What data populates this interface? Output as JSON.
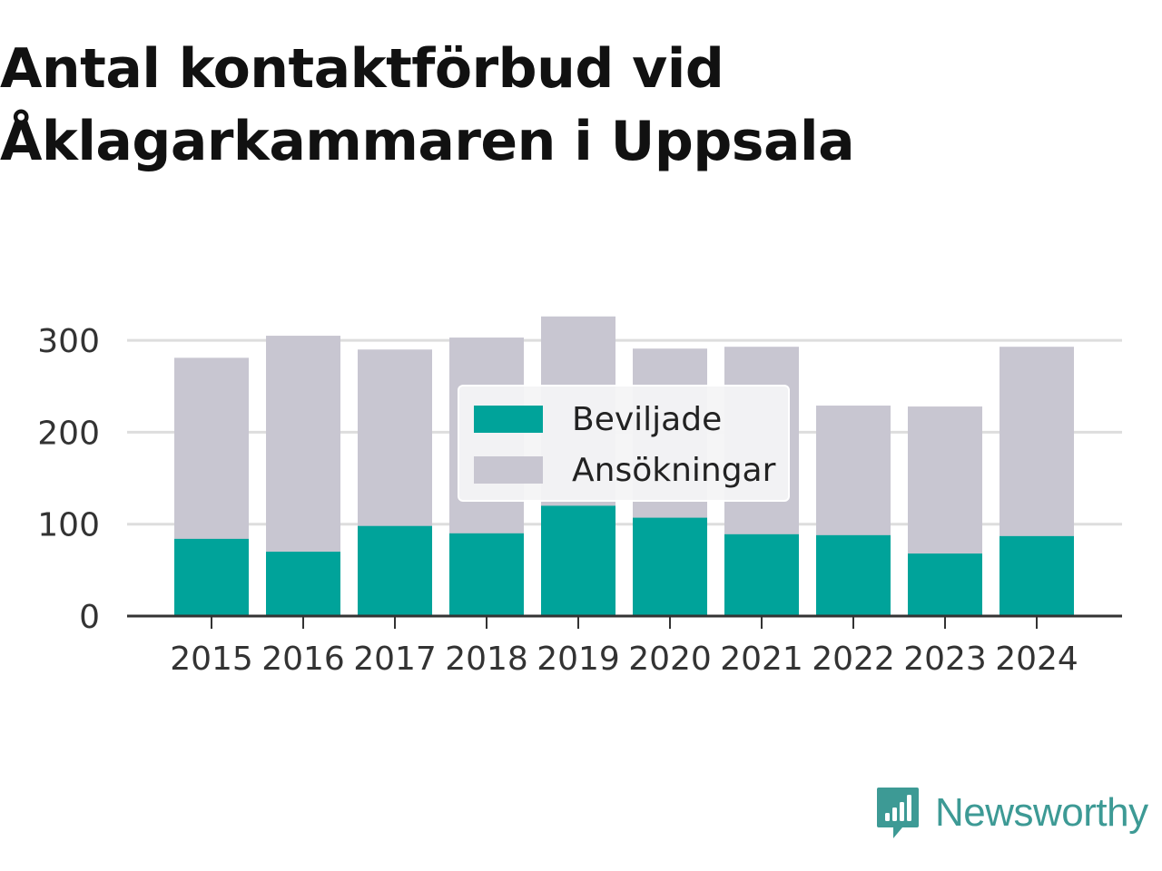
{
  "title_lines": [
    "Antal kontaktförbud vid",
    "Åklagarkammaren i Uppsala"
  ],
  "colors": {
    "beviljade": "#00a39a",
    "ansokningar": "#c8c6d1",
    "brand": "#3d9a95"
  },
  "chart_data": {
    "type": "bar",
    "stacked": false,
    "title": "Antal kontaktförbud vid Åklagarkammaren i Uppsala",
    "categories": [
      "2015",
      "2016",
      "2017",
      "2018",
      "2019",
      "2020",
      "2021",
      "2022",
      "2023",
      "2024"
    ],
    "series": [
      {
        "name": "Ansökningar",
        "values": [
          281,
          305,
          290,
          303,
          326,
          291,
          293,
          229,
          228,
          293
        ]
      },
      {
        "name": "Beviljade",
        "values": [
          84,
          70,
          98,
          90,
          120,
          107,
          89,
          88,
          68,
          87
        ]
      }
    ],
    "yticks": [
      0,
      100,
      200,
      300
    ],
    "ylim": [
      0,
      330
    ],
    "grid": true,
    "legend": {
      "position": "center",
      "items": [
        "Beviljade",
        "Ansökningar"
      ]
    }
  },
  "brand": {
    "name": "Newsworthy",
    "icon": "newsworthy-logo-icon"
  }
}
